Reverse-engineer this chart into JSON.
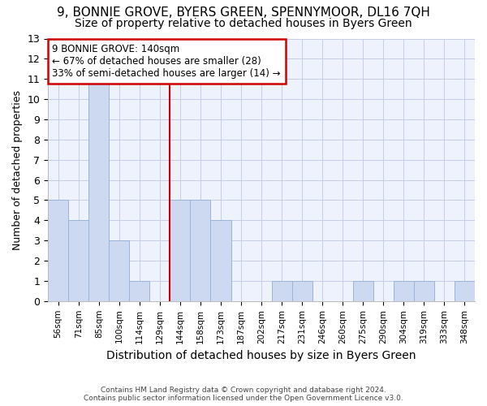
{
  "title1": "9, BONNIE GROVE, BYERS GREEN, SPENNYMOOR, DL16 7QH",
  "title2": "Size of property relative to detached houses in Byers Green",
  "xlabel": "Distribution of detached houses by size in Byers Green",
  "ylabel": "Number of detached properties",
  "categories": [
    "56sqm",
    "71sqm",
    "85sqm",
    "100sqm",
    "114sqm",
    "129sqm",
    "144sqm",
    "158sqm",
    "173sqm",
    "187sqm",
    "202sqm",
    "217sqm",
    "231sqm",
    "246sqm",
    "260sqm",
    "275sqm",
    "290sqm",
    "304sqm",
    "319sqm",
    "333sqm",
    "348sqm"
  ],
  "values": [
    5,
    4,
    11,
    3,
    1,
    0,
    5,
    5,
    4,
    0,
    0,
    1,
    1,
    0,
    0,
    1,
    0,
    1,
    1,
    0,
    1
  ],
  "highlight_index": 6,
  "bar_color": "#ccd9f0",
  "bar_edge_color": "#99b3d9",
  "highlight_line_color": "#cc0000",
  "annotation_box_edge": "#cc0000",
  "annotation_line1": "9 BONNIE GROVE: 140sqm",
  "annotation_line2": "← 67% of detached houses are smaller (28)",
  "annotation_line3": "33% of semi-detached houses are larger (14) →",
  "ylim": [
    0,
    13
  ],
  "yticks": [
    0,
    1,
    2,
    3,
    4,
    5,
    6,
    7,
    8,
    9,
    10,
    11,
    12,
    13
  ],
  "footer1": "Contains HM Land Registry data © Crown copyright and database right 2024.",
  "footer2": "Contains public sector information licensed under the Open Government Licence v3.0.",
  "bg_color": "#edf2fc",
  "grid_color": "#c5cce8"
}
